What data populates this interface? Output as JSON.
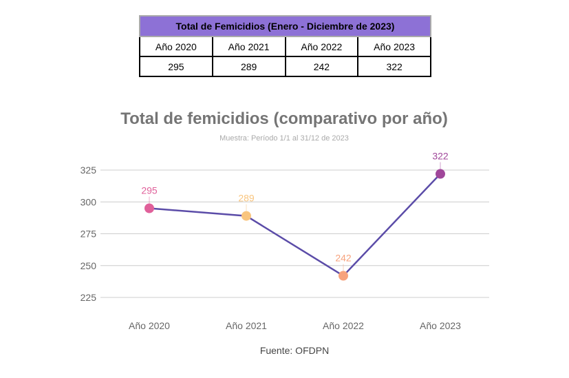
{
  "table": {
    "title": "Total de Femicidios (Enero - Diciembre de 2023)",
    "headers": [
      "Año 2020",
      "Año 2021",
      "Año 2022",
      "Año 2023"
    ],
    "values": [
      "295",
      "289",
      "242",
      "322"
    ]
  },
  "chart_data": {
    "type": "line",
    "title": "Total de femicidios (comparativo por año)",
    "subtitle": "Muestra: Período 1/1 al 31/12  de 2023",
    "categories": [
      "Año 2020",
      "Año 2021",
      "Año 2022",
      "Año 2023"
    ],
    "series": [
      {
        "values": [
          295,
          289,
          242,
          322
        ],
        "color": "#5b4ca8"
      }
    ],
    "point_colors": [
      "#e0609a",
      "#f9c57e",
      "#f7a27c",
      "#a0479a"
    ],
    "data_labels": [
      "295",
      "289",
      "242",
      "322"
    ],
    "yticks": [
      225,
      250,
      275,
      300,
      325
    ],
    "ylim": [
      215,
      335
    ],
    "grid": true,
    "xlabel": "",
    "ylabel": "",
    "source": "Fuente: OFDPN"
  }
}
